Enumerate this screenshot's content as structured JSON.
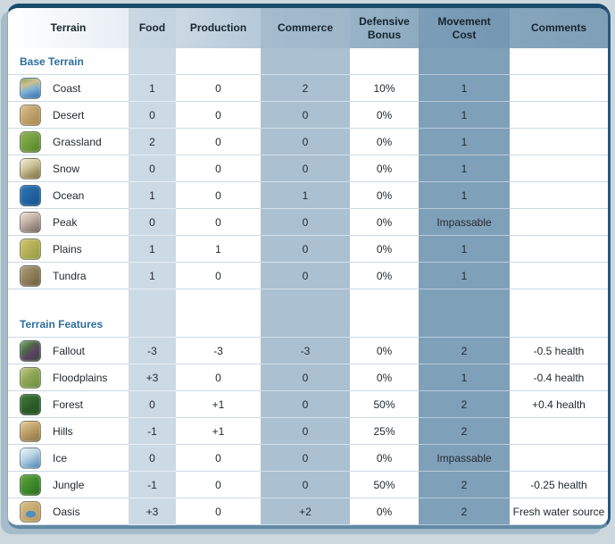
{
  "colors": {
    "frame_top_border": "#1a4a6c",
    "food_column_tint": "#ccdae5",
    "commerce_column_tint": "#abc1d2",
    "movement_column_tint": "#7fa0b9",
    "section_label_color": "#2d6e9b"
  },
  "table": {
    "columns": [
      {
        "key": "terrain",
        "label": "Terrain"
      },
      {
        "key": "food",
        "label": "Food"
      },
      {
        "key": "production",
        "label": "Production"
      },
      {
        "key": "commerce",
        "label": "Commerce"
      },
      {
        "key": "defensive",
        "label": "Defensive Bonus"
      },
      {
        "key": "movement",
        "label": "Movement Cost"
      },
      {
        "key": "comments",
        "label": "Comments"
      }
    ],
    "sections": [
      {
        "label": "Base Terrain",
        "rows": [
          {
            "id": "coast",
            "icon": "coast-terrain-icon",
            "name": "Coast",
            "food": "1",
            "production": "0",
            "commerce": "2",
            "defensive": "10%",
            "movement": "1",
            "comments": ""
          },
          {
            "id": "desert",
            "icon": "desert-terrain-icon",
            "name": "Desert",
            "food": "0",
            "production": "0",
            "commerce": "0",
            "defensive": "0%",
            "movement": "1",
            "comments": ""
          },
          {
            "id": "grassland",
            "icon": "grassland-terrain-icon",
            "name": "Grassland",
            "food": "2",
            "production": "0",
            "commerce": "0",
            "defensive": "0%",
            "movement": "1",
            "comments": ""
          },
          {
            "id": "snow",
            "icon": "snow-terrain-icon",
            "name": "Snow",
            "food": "0",
            "production": "0",
            "commerce": "0",
            "defensive": "0%",
            "movement": "1",
            "comments": ""
          },
          {
            "id": "ocean",
            "icon": "ocean-terrain-icon",
            "name": "Ocean",
            "food": "1",
            "production": "0",
            "commerce": "1",
            "defensive": "0%",
            "movement": "1",
            "comments": ""
          },
          {
            "id": "peak",
            "icon": "peak-terrain-icon",
            "name": "Peak",
            "food": "0",
            "production": "0",
            "commerce": "0",
            "defensive": "0%",
            "movement": "Impassable",
            "comments": ""
          },
          {
            "id": "plains",
            "icon": "plains-terrain-icon",
            "name": "Plains",
            "food": "1",
            "production": "1",
            "commerce": "0",
            "defensive": "0%",
            "movement": "1",
            "comments": ""
          },
          {
            "id": "tundra",
            "icon": "tundra-terrain-icon",
            "name": "Tundra",
            "food": "1",
            "production": "0",
            "commerce": "0",
            "defensive": "0%",
            "movement": "1",
            "comments": ""
          }
        ]
      },
      {
        "label": "Terrain Features",
        "rows": [
          {
            "id": "fallout",
            "icon": "fallout-terrain-icon",
            "name": "Fallout",
            "food": "-3",
            "production": "-3",
            "commerce": "-3",
            "defensive": "0%",
            "movement": "2",
            "comments": "-0.5 health"
          },
          {
            "id": "floodplains",
            "icon": "floodplains-terrain-icon",
            "name": "Floodplains",
            "food": "+3",
            "production": "0",
            "commerce": "0",
            "defensive": "0%",
            "movement": "1",
            "comments": "-0.4 health"
          },
          {
            "id": "forest",
            "icon": "forest-terrain-icon",
            "name": "Forest",
            "food": "0",
            "production": "+1",
            "commerce": "0",
            "defensive": "50%",
            "movement": "2",
            "comments": "+0.4 health"
          },
          {
            "id": "hills",
            "icon": "hills-terrain-icon",
            "name": "Hills",
            "food": "-1",
            "production": "+1",
            "commerce": "0",
            "defensive": "25%",
            "movement": "2",
            "comments": ""
          },
          {
            "id": "ice",
            "icon": "ice-terrain-icon",
            "name": "Ice",
            "food": "0",
            "production": "0",
            "commerce": "0",
            "defensive": "0%",
            "movement": "Impassable",
            "comments": ""
          },
          {
            "id": "jungle",
            "icon": "jungle-terrain-icon",
            "name": "Jungle",
            "food": "-1",
            "production": "0",
            "commerce": "0",
            "defensive": "50%",
            "movement": "2",
            "comments": "-0.25 health"
          },
          {
            "id": "oasis",
            "icon": "oasis-terrain-icon",
            "name": "Oasis",
            "food": "+3",
            "production": "0",
            "commerce": "+2",
            "defensive": "0%",
            "movement": "2",
            "comments": "Fresh water source"
          }
        ]
      }
    ]
  }
}
